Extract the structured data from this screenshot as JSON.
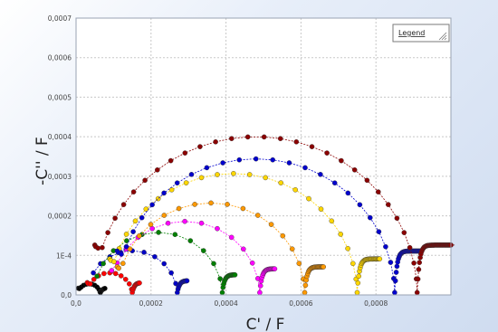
{
  "chart_data": {
    "type": "scatter",
    "xlabel": "C' / F",
    "ylabel": "-C'' / F",
    "legend_label": "Legend",
    "legend_placement": "top-right",
    "xlim": [
      0,
      0.001
    ],
    "ylim": [
      0,
      0.0007
    ],
    "grid": true,
    "x_ticks": [
      {
        "value": 0,
        "label": "0,0"
      },
      {
        "value": 0.0002,
        "label": "0,0002"
      },
      {
        "value": 0.0004,
        "label": "0,0004"
      },
      {
        "value": 0.0006,
        "label": "0,0006"
      },
      {
        "value": 0.0008,
        "label": "0,0008"
      }
    ],
    "y_ticks": [
      {
        "value": 0,
        "label": "0,0"
      },
      {
        "value": 0.0001,
        "label": "1E-4"
      },
      {
        "value": 0.0002,
        "label": "0,0002"
      },
      {
        "value": 0.0003,
        "label": "0,0003"
      },
      {
        "value": 0.0004,
        "label": "0,0004"
      },
      {
        "value": 0.0005,
        "label": "0,0005"
      },
      {
        "value": 0.0006,
        "label": "0,0006"
      },
      {
        "value": 0.0007,
        "label": "0,0007"
      }
    ],
    "series": [
      {
        "color": "#000000",
        "x0": 0.0,
        "center": 3.5e-05,
        "radius": 3e-05,
        "tail_end": 6e-05,
        "tail_y": 1.2e-05,
        "lead_from": 6e-06
      },
      {
        "color": "#ff0000",
        "x0": 0.0,
        "center": 9e-05,
        "radius": 6e-05,
        "tail_end": 9.5e-05,
        "tail_y": 2.5e-05,
        "lead_from": 1.8e-05
      },
      {
        "color": "#0000c8",
        "x0": 0.0,
        "center": 0.00015,
        "radius": 0.00012,
        "tail_end": 0.00013,
        "tail_y": 3e-05,
        "lead_from": 3.5e-05
      },
      {
        "color": "#008000",
        "x0": 0.0,
        "center": 0.00022,
        "radius": 0.00017,
        "tail_end": 0.00017,
        "tail_y": 4.5e-05,
        "lead_from": 5e-05
      },
      {
        "color": "#ff00ff",
        "x0": 0.0,
        "center": 0.00029,
        "radius": 0.0002,
        "tail_end": 0.0002,
        "tail_y": 6e-05,
        "lead_from": 9e-05
      },
      {
        "color": "#ff9900",
        "x0": 0.0,
        "center": 0.00036,
        "radius": 0.00025,
        "tail_end": 0.00025,
        "tail_y": 6.5e-05,
        "lead_from": 0.00011
      },
      {
        "color": "#ffd700",
        "x0": 0.0,
        "center": 0.00042,
        "radius": 0.00033,
        "tail_end": 0.0003,
        "tail_y": 8.5e-05,
        "lead_from": 9e-05
      },
      {
        "color": "#0000cd",
        "x0": 0.0,
        "center": 0.00048,
        "radius": 0.00037,
        "tail_end": 0.00035,
        "tail_y": 0.000105,
        "lead_from": 0.0001
      },
      {
        "color": "#8b0000",
        "x0": 0.0,
        "center": 0.00048,
        "radius": 0.00043,
        "tail_end": 0.0005,
        "tail_y": 0.00012,
        "lead_from": 5e-05
      }
    ]
  }
}
